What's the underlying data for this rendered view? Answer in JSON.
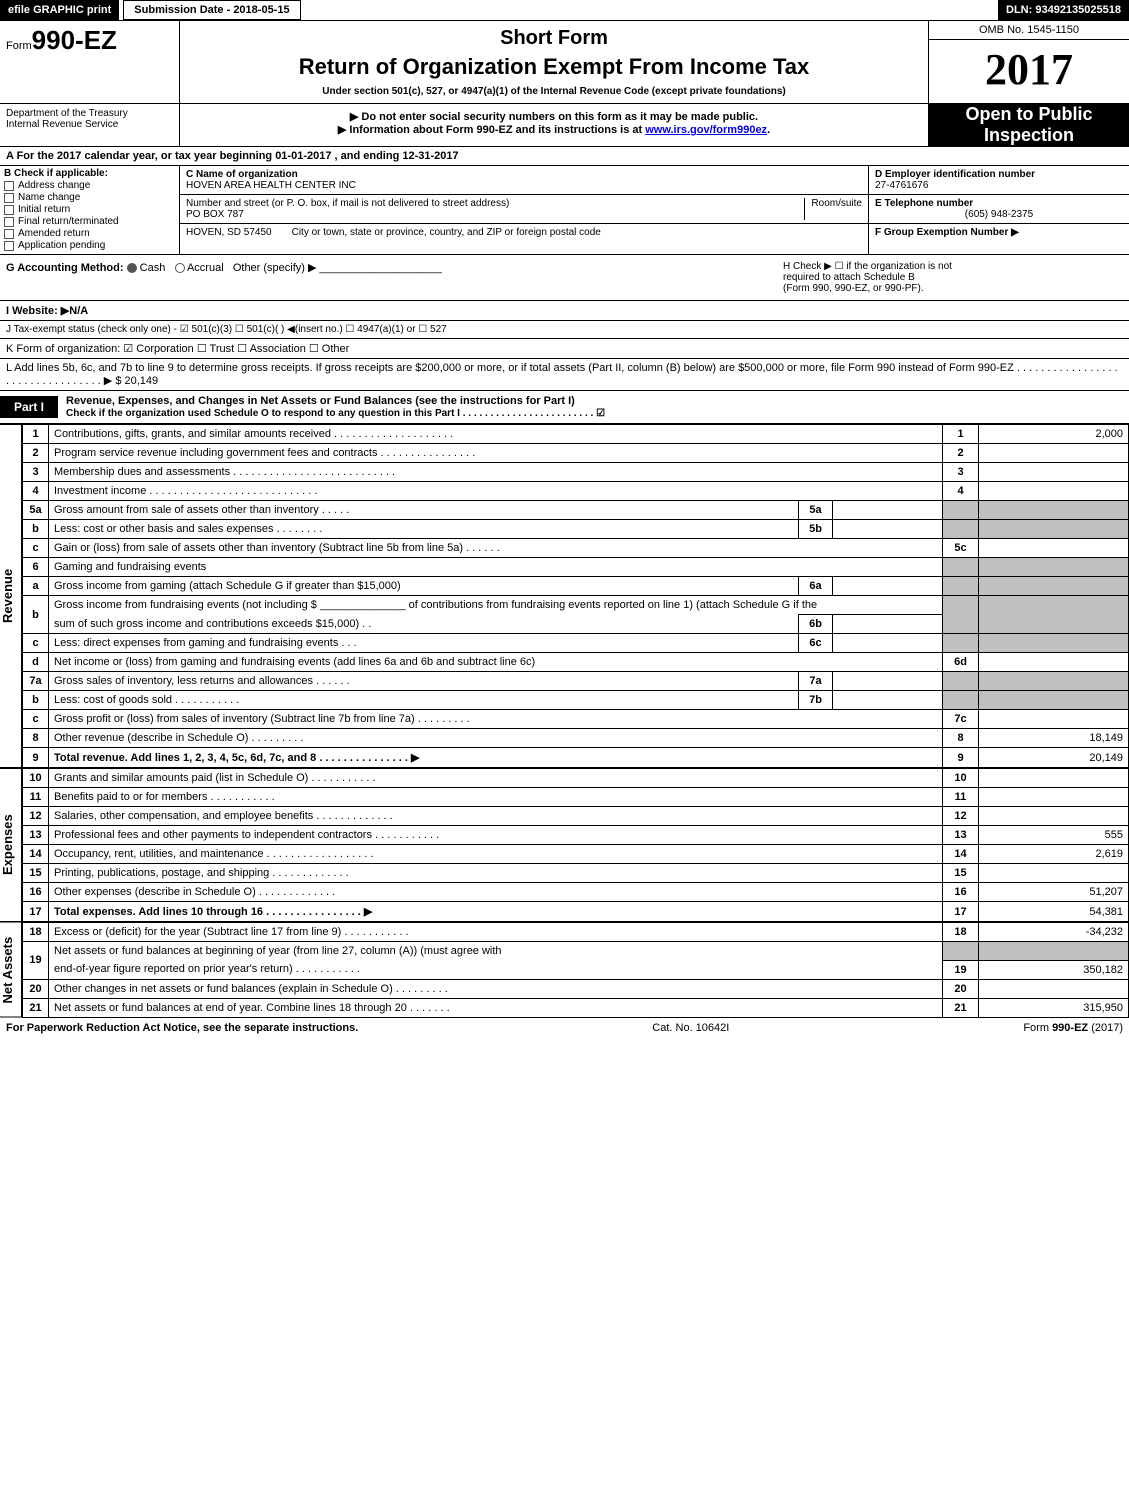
{
  "topbar": {
    "efile": "efile GRAPHIC print",
    "submission_label": "Submission Date - 2018-05-15",
    "dln": "DLN: 93492135025518"
  },
  "header": {
    "form_prefix": "Form",
    "form_number": "990-EZ",
    "short_form": "Short Form",
    "title": "Return of Organization Exempt From Income Tax",
    "under_section": "Under section 501(c), 527, or 4947(a)(1) of the Internal Revenue Code (except private foundations)",
    "omb": "OMB No. 1545-1150",
    "year": "2017",
    "dept1": "Department of the Treasury",
    "dept2": "Internal Revenue Service",
    "do_not_enter": "▶ Do not enter social security numbers on this form as it may be made public.",
    "info_about_pre": "▶ Information about Form 990-EZ and its instructions is at ",
    "info_about_link": "www.irs.gov/form990ez",
    "info_about_post": ".",
    "open1": "Open to Public",
    "open2": "Inspection"
  },
  "a_line": "A  For the 2017 calendar year, or tax year beginning 01-01-2017               , and ending 12-31-2017",
  "b": {
    "label": "B  Check if applicable:",
    "items": [
      "Address change",
      "Name change",
      "Initial return",
      "Final return/terminated",
      "Amended return",
      "Application pending"
    ]
  },
  "c": {
    "label": "C Name of organization",
    "name": "HOVEN AREA HEALTH CENTER INC",
    "street_label": "Number and street (or P. O. box, if mail is not delivered to street address)",
    "street": "PO BOX 787",
    "room_label": "Room/suite",
    "city_label": "City or town, state or province, country, and ZIP or foreign postal code",
    "city": "HOVEN, SD  57450"
  },
  "d": {
    "label": "D Employer identification number",
    "value": "27-4761676"
  },
  "e": {
    "label": "E Telephone number",
    "value": "(605) 948-2375"
  },
  "f": {
    "label": "F Group Exemption Number",
    "arrow": "▶"
  },
  "g": {
    "label": "G Accounting Method:",
    "cash": "Cash",
    "accrual": "Accrual",
    "other": "Other (specify) ▶"
  },
  "h": {
    "line1": "H   Check ▶  ☐  if the organization is not",
    "line2": "required to attach Schedule B",
    "line3": "(Form 990, 990-EZ, or 990-PF)."
  },
  "i_website": "I Website: ▶N/A",
  "j_tax": "J Tax-exempt status (check only one) - ☑ 501(c)(3)  ☐ 501(c)(  ) ◀(insert no.)  ☐ 4947(a)(1) or  ☐ 527",
  "k_form": "K Form of organization:  ☑ Corporation   ☐ Trust   ☐ Association   ☐ Other",
  "l_add": "L Add lines 5b, 6c, and 7b to line 9 to determine gross receipts. If gross receipts are $200,000 or more, or if total assets (Part II, column (B) below) are $500,000 or more, file Form 990 instead of Form 990-EZ  . . . . . . . . . . . . . . . . . . . . . . . . . . . . . . . . .  ▶ $ 20,149",
  "part1": {
    "label": "Part I",
    "title": "Revenue, Expenses, and Changes in Net Assets or Fund Balances (see the instructions for Part I)",
    "sub": "Check if the organization used Schedule O to respond to any question in this Part I . . . . . . . . . . . . . . . . . . . . . . . .  ☑"
  },
  "sections": {
    "revenue": "Revenue",
    "expenses": "Expenses",
    "netassets": "Net Assets"
  },
  "lines": {
    "l1": {
      "no": "1",
      "desc": "Contributions, gifts, grants, and similar amounts received . . . . . . . . . . . . . . . . . . . .",
      "num": "1",
      "amt": "2,000"
    },
    "l2": {
      "no": "2",
      "desc": "Program service revenue including government fees and contracts . . . . . . . . . . . . . . . .",
      "num": "2",
      "amt": ""
    },
    "l3": {
      "no": "3",
      "desc": "Membership dues and assessments . . . . . . . . . . . . . . . . . . . . . . . . . . .",
      "num": "3",
      "amt": ""
    },
    "l4": {
      "no": "4",
      "desc": "Investment income . . . . . . . . . . . . . . . . . . . . . . . . . . . .",
      "num": "4",
      "amt": ""
    },
    "l5a": {
      "no": "5a",
      "desc": "Gross amount from sale of assets other than inventory . . . . .",
      "sub": "5a"
    },
    "l5b": {
      "no": "b",
      "desc": "Less: cost or other basis and sales expenses . . . . . . . .",
      "sub": "5b"
    },
    "l5c": {
      "no": "c",
      "desc": "Gain or (loss) from sale of assets other than inventory (Subtract line 5b from line 5a)              . . . . . .",
      "num": "5c",
      "amt": ""
    },
    "l6": {
      "no": "6",
      "desc": "Gaming and fundraising events"
    },
    "l6a": {
      "no": "a",
      "desc": "Gross income from gaming (attach Schedule G if greater than $15,000)",
      "sub": "6a"
    },
    "l6b": {
      "no": "b",
      "desc": "Gross income from fundraising events (not including $ ______________ of contributions from fundraising events reported on line 1) (attach Schedule G if the",
      "desc2": "sum of such gross income and contributions exceeds $15,000)         . .",
      "sub": "6b"
    },
    "l6c": {
      "no": "c",
      "desc": "Less: direct expenses from gaming and fundraising events           . . .",
      "sub": "6c"
    },
    "l6d": {
      "no": "d",
      "desc": "Net income or (loss) from gaming and fundraising events (add lines 6a and 6b and subtract line 6c)",
      "num": "6d",
      "amt": ""
    },
    "l7a": {
      "no": "7a",
      "desc": "Gross sales of inventory, less returns and allowances             . . . . . .",
      "sub": "7a"
    },
    "l7b": {
      "no": "b",
      "desc": "Less: cost of goods sold                         . . . . . . . . . . .",
      "sub": "7b"
    },
    "l7c": {
      "no": "c",
      "desc": "Gross profit or (loss) from sales of inventory (Subtract line 7b from line 7a)           . . . . . . . . .",
      "num": "7c",
      "amt": ""
    },
    "l8": {
      "no": "8",
      "desc": "Other revenue (describe in Schedule O)                                 . . . . . . . . .",
      "num": "8",
      "amt": "18,149"
    },
    "l9": {
      "no": "9",
      "desc": "Total revenue. Add lines 1, 2, 3, 4, 5c, 6d, 7c, and 8          . . . . . . . . . . . . . . .  ▶",
      "num": "9",
      "amt": "20,149",
      "bold": true
    },
    "l10": {
      "no": "10",
      "desc": "Grants and similar amounts paid (list in Schedule O)                   . . . . . . . . . . .",
      "num": "10",
      "amt": ""
    },
    "l11": {
      "no": "11",
      "desc": "Benefits paid to or for members                                   . . . . . . . . . . .",
      "num": "11",
      "amt": ""
    },
    "l12": {
      "no": "12",
      "desc": "Salaries, other compensation, and employee benefits             . . . . . . . . . . . . .",
      "num": "12",
      "amt": ""
    },
    "l13": {
      "no": "13",
      "desc": "Professional fees and other payments to independent contractors       . . . . . . . . . . .",
      "num": "13",
      "amt": "555"
    },
    "l14": {
      "no": "14",
      "desc": "Occupancy, rent, utilities, and maintenance         . . . . . . . . . . . . . . . . . .",
      "num": "14",
      "amt": "2,619"
    },
    "l15": {
      "no": "15",
      "desc": "Printing, publications, postage, and shipping                   . . . . . . . . . . . . .",
      "num": "15",
      "amt": ""
    },
    "l16": {
      "no": "16",
      "desc": "Other expenses (describe in Schedule O)                         . . . . . . . . . . . . .",
      "num": "16",
      "amt": "51,207"
    },
    "l17": {
      "no": "17",
      "desc": "Total expenses. Add lines 10 through 16                 . . . . . . . . . . . . . . . .  ▶",
      "num": "17",
      "amt": "54,381",
      "bold": true
    },
    "l18": {
      "no": "18",
      "desc": "Excess or (deficit) for the year (Subtract line 17 from line 9)               . . . . . . . . . . .",
      "num": "18",
      "amt": "-34,232"
    },
    "l19": {
      "no": "19",
      "desc": "Net assets or fund balances at beginning of year (from line 27, column (A)) (must agree with",
      "desc2": "end-of-year figure reported on prior year's return)                     . . . . . . . . . . .",
      "num": "19",
      "amt": "350,182"
    },
    "l20": {
      "no": "20",
      "desc": "Other changes in net assets or fund balances (explain in Schedule O)         . . . . . . . . .",
      "num": "20",
      "amt": ""
    },
    "l21": {
      "no": "21",
      "desc": "Net assets or fund balances at end of year. Combine lines 18 through 20             . . . . . . .",
      "num": "21",
      "amt": "315,950"
    }
  },
  "footer": {
    "left": "For Paperwork Reduction Act Notice, see the separate instructions.",
    "mid": "Cat. No. 10642I",
    "right": "Form 990-EZ (2017)"
  },
  "colors": {
    "black": "#000000",
    "white": "#ffffff",
    "shade": "#c0c0c0",
    "link": "#0000ee"
  }
}
